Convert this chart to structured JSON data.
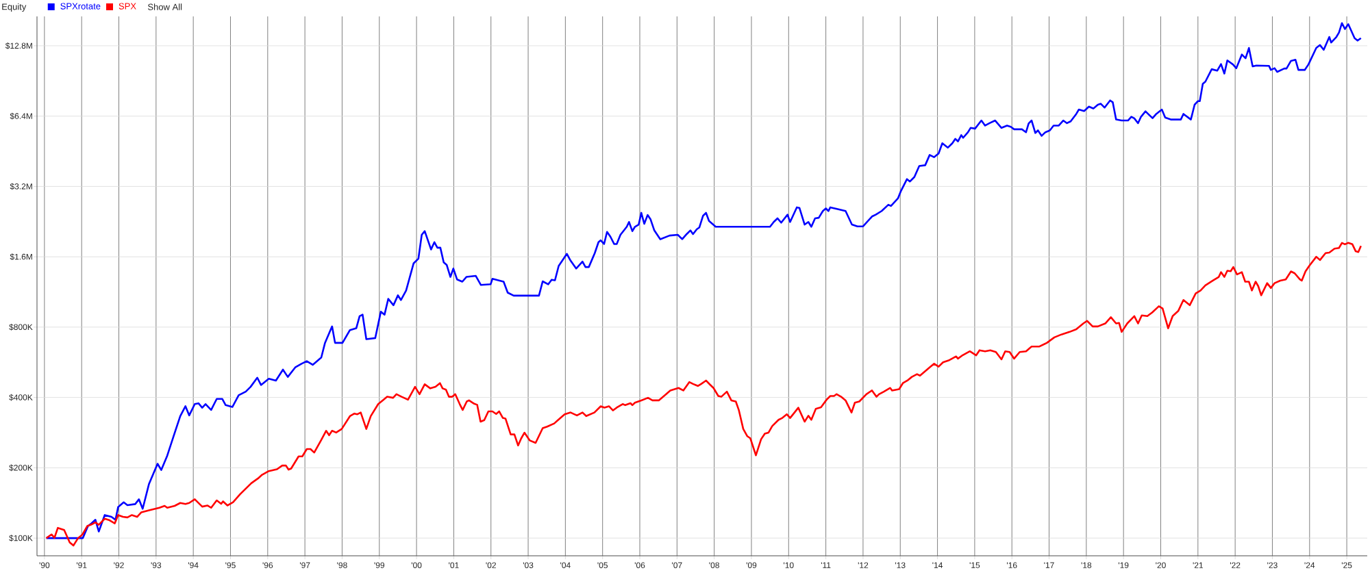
{
  "chart_data": {
    "type": "line",
    "title": "Equity",
    "annotations": [
      "Show All"
    ],
    "log": "y",
    "grid": true,
    "legend": "top left",
    "line_style": "solid",
    "xlim": [
      1989.8,
      2025.55
    ],
    "ylim": [
      84000,
      17100000
    ],
    "xticks": [
      {
        "value": 1990,
        "label": "'90"
      },
      {
        "value": 1991,
        "label": "'91"
      },
      {
        "value": 1992,
        "label": "'92"
      },
      {
        "value": 1993,
        "label": "'93"
      },
      {
        "value": 1994,
        "label": "'94"
      },
      {
        "value": 1995,
        "label": "'95"
      },
      {
        "value": 1996,
        "label": "'96"
      },
      {
        "value": 1997,
        "label": "'97"
      },
      {
        "value": 1998,
        "label": "'98"
      },
      {
        "value": 1999,
        "label": "'99"
      },
      {
        "value": 2000,
        "label": "'00"
      },
      {
        "value": 2001,
        "label": "'01"
      },
      {
        "value": 2002,
        "label": "'02"
      },
      {
        "value": 2003,
        "label": "'03"
      },
      {
        "value": 2004,
        "label": "'04"
      },
      {
        "value": 2005,
        "label": "'05"
      },
      {
        "value": 2006,
        "label": "'06"
      },
      {
        "value": 2007,
        "label": "'07"
      },
      {
        "value": 2008,
        "label": "'08"
      },
      {
        "value": 2009,
        "label": "'09"
      },
      {
        "value": 2010,
        "label": "'10"
      },
      {
        "value": 2011,
        "label": "'11"
      },
      {
        "value": 2012,
        "label": "'12"
      },
      {
        "value": 2013,
        "label": "'13"
      },
      {
        "value": 2014,
        "label": "'14"
      },
      {
        "value": 2015,
        "label": "'15"
      },
      {
        "value": 2016,
        "label": "'16"
      },
      {
        "value": 2017,
        "label": "'17"
      },
      {
        "value": 2018,
        "label": "'18"
      },
      {
        "value": 2019,
        "label": "'19"
      },
      {
        "value": 2020,
        "label": "'20"
      },
      {
        "value": 2021,
        "label": "'21"
      },
      {
        "value": 2022,
        "label": "'22"
      },
      {
        "value": 2023,
        "label": "'23"
      },
      {
        "value": 2024,
        "label": "'24"
      },
      {
        "value": 2025,
        "label": "'25"
      }
    ],
    "yticks": [
      {
        "value": 100000,
        "label": "$100K"
      },
      {
        "value": 200000,
        "label": "$200K"
      },
      {
        "value": 400000,
        "label": "$400K"
      },
      {
        "value": 800000,
        "label": "$800K"
      },
      {
        "value": 1600000,
        "label": "$1.6M"
      },
      {
        "value": 3200000,
        "label": "$3.2M"
      },
      {
        "value": 6400000,
        "label": "$6.4M"
      },
      {
        "value": 12800000,
        "label": "$12.8M"
      }
    ],
    "series": [
      {
        "name": "SPXrotate",
        "color": "#0000ff",
        "x": [
          1990.05,
          1991.03,
          1991.17,
          1991.26,
          1991.37,
          1991.46,
          1991.62,
          1991.8,
          1991.91,
          1991.98,
          1992.13,
          1992.23,
          1992.44,
          1992.54,
          1992.64,
          1992.81,
          1993.04,
          1993.14,
          1993.3,
          1993.47,
          1993.65,
          1993.79,
          1993.89,
          1994.04,
          1994.14,
          1994.24,
          1994.33,
          1994.48,
          1994.63,
          1994.78,
          1994.87,
          1995.05,
          1995.22,
          1995.41,
          1995.54,
          1995.72,
          1995.82,
          1996.03,
          1996.22,
          1996.41,
          1996.54,
          1996.74,
          1996.91,
          1997.05,
          1997.21,
          1997.44,
          1997.54,
          1997.73,
          1997.81,
          1998.01,
          1998.21,
          1998.38,
          1998.47,
          1998.55,
          1998.65,
          1998.89,
          1999.04,
          1999.14,
          1999.24,
          1999.38,
          1999.5,
          1999.58,
          1999.72,
          1999.92,
          2000.05,
          2000.14,
          2000.22,
          2000.39,
          2000.48,
          2000.56,
          2000.64,
          2000.73,
          2000.81,
          2000.91,
          2000.99,
          2001.09,
          2001.23,
          2001.34,
          2001.59,
          2001.73,
          2001.99,
          2002.04,
          2002.34,
          2002.45,
          2002.61,
          2003.29,
          2003.39,
          2003.54,
          2003.63,
          2003.72,
          2003.82,
          2003.92,
          2004.04,
          2004.14,
          2004.29,
          2004.46,
          2004.54,
          2004.63,
          2004.79,
          2004.89,
          2004.95,
          2005.04,
          2005.12,
          2005.21,
          2005.31,
          2005.38,
          2005.48,
          2005.65,
          2005.71,
          2005.8,
          2005.87,
          2005.97,
          2006.04,
          2006.12,
          2006.21,
          2006.29,
          2006.39,
          2006.55,
          2006.8,
          2007.02,
          2007.14,
          2007.26,
          2007.36,
          2007.43,
          2007.53,
          2007.6,
          2007.7,
          2007.78,
          2007.86,
          2008.04,
          2009.5,
          2009.6,
          2009.7,
          2009.8,
          2009.97,
          2010.04,
          2010.22,
          2010.29,
          2010.43,
          2010.53,
          2010.61,
          2010.71,
          2010.81,
          2010.92,
          2011.0,
          2011.07,
          2011.12,
          2011.32,
          2011.53,
          2011.7,
          2011.85,
          2012.0,
          2012.24,
          2012.34,
          2012.5,
          2012.68,
          2012.75,
          2012.94,
          2013.02,
          2013.18,
          2013.26,
          2013.38,
          2013.51,
          2013.67,
          2013.79,
          2013.91,
          2014.03,
          2014.13,
          2014.28,
          2014.4,
          2014.48,
          2014.55,
          2014.64,
          2014.69,
          2014.82,
          2014.89,
          2015.01,
          2015.18,
          2015.28,
          2015.4,
          2015.55,
          2015.72,
          2015.87,
          2015.97,
          2016.06,
          2016.27,
          2016.38,
          2016.45,
          2016.53,
          2016.63,
          2016.7,
          2016.8,
          2016.9,
          2017.02,
          2017.12,
          2017.26,
          2017.38,
          2017.48,
          2017.58,
          2017.73,
          2017.8,
          2017.94,
          2018.07,
          2018.19,
          2018.31,
          2018.39,
          2018.49,
          2018.64,
          2018.71,
          2018.8,
          2018.95,
          2019.12,
          2019.21,
          2019.29,
          2019.39,
          2019.47,
          2019.59,
          2019.66,
          2019.78,
          2019.88,
          2020.03,
          2020.12,
          2020.27,
          2020.54,
          2020.61,
          2020.81,
          2020.91,
          2021.0,
          2021.05,
          2021.13,
          2021.2,
          2021.37,
          2021.52,
          2021.62,
          2021.71,
          2021.79,
          2021.94,
          2022.03,
          2022.18,
          2022.28,
          2022.37,
          2022.47,
          2022.57,
          2022.91,
          2022.96,
          2023.06,
          2023.13,
          2023.32,
          2023.38,
          2023.5,
          2023.62,
          2023.7,
          2023.87,
          2023.97,
          2024.18,
          2024.28,
          2024.38,
          2024.53,
          2024.58,
          2024.72,
          2024.79,
          2024.87,
          2024.95,
          2025.04,
          2025.21,
          2025.29,
          2025.38
        ],
        "values": [
          100000,
          100000,
          112600,
          115500,
          119800,
          106700,
          125500,
          123300,
          119800,
          135900,
          142400,
          138400,
          139900,
          146600,
          133500,
          170600,
          208100,
          195700,
          225300,
          272900,
          332700,
          366800,
          335200,
          374800,
          377600,
          361600,
          374800,
          353800,
          394300,
          394300,
          370900,
          364200,
          408600,
          423600,
          444100,
          486000,
          452200,
          480900,
          472400,
          526300,
          489700,
          537800,
          557600,
          571900,
          551800,
          593000,
          685000,
          805600,
          685000,
          685000,
          777100,
          791200,
          891600,
          904600,
          710200,
          718100,
          931100,
          904600,
          1057000,
          993000,
          1095000,
          1045000,
          1148000,
          1499000,
          1571000,
          1987000,
          2060000,
          1720000,
          1848000,
          1750000,
          1750000,
          1515000,
          1477000,
          1312000,
          1425000,
          1279000,
          1252000,
          1312000,
          1326000,
          1212000,
          1220000,
          1288000,
          1252000,
          1124000,
          1091000,
          1091000,
          1256000,
          1220000,
          1276000,
          1269000,
          1462000,
          1543000,
          1647000,
          1540000,
          1425000,
          1526000,
          1446000,
          1446000,
          1659000,
          1848000,
          1882000,
          1815000,
          2045000,
          1951000,
          1815000,
          1815000,
          1987000,
          2151000,
          2255000,
          2060000,
          2151000,
          2198000,
          2467000,
          2214000,
          2415000,
          2312000,
          2075000,
          1903000,
          1973000,
          1987000,
          1903000,
          2001000,
          2075000,
          2001000,
          2098000,
          2136000,
          2397000,
          2467000,
          2278000,
          2151000,
          2151000,
          2255000,
          2337000,
          2240000,
          2423000,
          2255000,
          2604000,
          2590000,
          2198000,
          2255000,
          2151000,
          2337000,
          2350000,
          2512000,
          2577000,
          2512000,
          2604000,
          2558000,
          2512000,
          2198000,
          2159000,
          2159000,
          2380000,
          2423000,
          2512000,
          2672000,
          2640000,
          2850000,
          3064000,
          3440000,
          3360000,
          3514000,
          3917000,
          3945000,
          4365000,
          4270000,
          4429000,
          4900000,
          4691000,
          4900000,
          5116000,
          4990000,
          5304000,
          5170000,
          5460000,
          5700000,
          5660000,
          6130000,
          5830000,
          5970000,
          6130000,
          5700000,
          5830000,
          5760000,
          5620000,
          5620000,
          5460000,
          5950000,
          6130000,
          5420000,
          5560000,
          5270000,
          5460000,
          5560000,
          5830000,
          5830000,
          6130000,
          5970000,
          6080000,
          6540000,
          6830000,
          6730000,
          7030000,
          6900000,
          7160000,
          7230000,
          6960000,
          7470000,
          7340000,
          6190000,
          6130000,
          6130000,
          6360000,
          6260000,
          5970000,
          6360000,
          6710000,
          6540000,
          6270000,
          6540000,
          6830000,
          6310000,
          6190000,
          6190000,
          6540000,
          6190000,
          7160000,
          7420000,
          7420000,
          8790000,
          8990000,
          10160000,
          10020000,
          10690000,
          9730000,
          11080000,
          10650000,
          10260000,
          11740000,
          11320000,
          12530000,
          10450000,
          10530000,
          10500000,
          10090000,
          10260000,
          9900000,
          10230000,
          10230000,
          11030000,
          11160000,
          10090000,
          10090000,
          10650000,
          12530000,
          12890000,
          12300000,
          13960000,
          13220000,
          13960000,
          14580000,
          16010000,
          15100000,
          15840000,
          13800000,
          13470000,
          13800000
        ]
      },
      {
        "name": "SPX",
        "color": "#ff0000",
        "x": [
          1990.05,
          1990.19,
          1990.27,
          1990.36,
          1990.53,
          1990.68,
          1990.78,
          1990.9,
          1991.02,
          1991.15,
          1991.26,
          1991.37,
          1991.46,
          1991.62,
          1991.75,
          1991.89,
          1991.98,
          1992.11,
          1992.23,
          1992.35,
          1992.49,
          1992.6,
          1992.81,
          1993.09,
          1993.23,
          1993.3,
          1993.5,
          1993.65,
          1993.79,
          1993.89,
          1994.04,
          1994.24,
          1994.38,
          1994.48,
          1994.63,
          1994.75,
          1994.8,
          1994.92,
          1995.07,
          1995.26,
          1995.41,
          1995.56,
          1995.74,
          1995.85,
          1996.03,
          1996.25,
          1996.39,
          1996.49,
          1996.56,
          1996.63,
          1996.83,
          1996.93,
          1997.05,
          1997.15,
          1997.25,
          1997.44,
          1997.57,
          1997.65,
          1997.73,
          1997.84,
          1997.99,
          1998.21,
          1998.33,
          1998.41,
          1998.5,
          1998.65,
          1998.77,
          1998.97,
          1999.09,
          1999.21,
          1999.37,
          1999.46,
          1999.6,
          1999.77,
          1999.96,
          2000.08,
          2000.22,
          2000.37,
          2000.51,
          2000.63,
          2000.7,
          2000.79,
          2000.87,
          2000.96,
          2001.04,
          2001.16,
          2001.24,
          2001.35,
          2001.41,
          2001.55,
          2001.63,
          2001.72,
          2001.82,
          2001.93,
          2002.04,
          2002.14,
          2002.22,
          2002.32,
          2002.39,
          2002.53,
          2002.63,
          2002.73,
          2002.81,
          2002.9,
          2003.04,
          2003.2,
          2003.39,
          2003.51,
          2003.7,
          2003.8,
          2003.98,
          2004.14,
          2004.31,
          2004.46,
          2004.56,
          2004.78,
          2004.95,
          2005.05,
          2005.17,
          2005.28,
          2005.38,
          2005.54,
          2005.61,
          2005.75,
          2005.8,
          2005.87,
          2006.04,
          2006.22,
          2006.34,
          2006.51,
          2006.65,
          2006.82,
          2007.04,
          2007.17,
          2007.33,
          2007.43,
          2007.56,
          2007.65,
          2007.78,
          2007.88,
          2007.98,
          2008.11,
          2008.19,
          2008.34,
          2008.46,
          2008.58,
          2008.66,
          2008.78,
          2008.89,
          2008.97,
          2009.12,
          2009.26,
          2009.36,
          2009.46,
          2009.56,
          2009.73,
          2009.83,
          2009.95,
          2010.04,
          2010.26,
          2010.43,
          2010.53,
          2010.61,
          2010.73,
          2010.87,
          2011.02,
          2011.12,
          2011.22,
          2011.29,
          2011.41,
          2011.53,
          2011.69,
          2011.78,
          2011.9,
          2012.09,
          2012.24,
          2012.36,
          2012.43,
          2012.56,
          2012.73,
          2012.78,
          2012.97,
          2013.07,
          2013.19,
          2013.31,
          2013.45,
          2013.53,
          2013.81,
          2013.91,
          2014.03,
          2014.15,
          2014.3,
          2014.5,
          2014.55,
          2014.68,
          2014.87,
          2015.04,
          2015.13,
          2015.28,
          2015.42,
          2015.57,
          2015.72,
          2015.82,
          2015.94,
          2016.06,
          2016.21,
          2016.38,
          2016.53,
          2016.74,
          2016.94,
          2017.14,
          2017.33,
          2017.55,
          2017.73,
          2017.92,
          2018.02,
          2018.17,
          2018.31,
          2018.51,
          2018.66,
          2018.8,
          2018.88,
          2018.95,
          2019.1,
          2019.29,
          2019.39,
          2019.49,
          2019.64,
          2019.77,
          2019.95,
          2020.05,
          2020.2,
          2020.32,
          2020.47,
          2020.61,
          2020.78,
          2020.94,
          2021.07,
          2021.2,
          2021.4,
          2021.56,
          2021.62,
          2021.71,
          2021.79,
          2021.88,
          2021.95,
          2022.05,
          2022.18,
          2022.27,
          2022.37,
          2022.45,
          2022.55,
          2022.62,
          2022.7,
          2022.86,
          2022.96,
          2023.06,
          2023.21,
          2023.36,
          2023.5,
          2023.6,
          2023.74,
          2023.79,
          2023.89,
          2023.99,
          2024.18,
          2024.28,
          2024.43,
          2024.53,
          2024.67,
          2024.79,
          2024.87,
          2024.95,
          2025.04,
          2025.15,
          2025.24,
          2025.31,
          2025.38
        ],
        "values": [
          100000,
          103700,
          100400,
          110600,
          108300,
          95800,
          93000,
          99800,
          103600,
          112600,
          114300,
          116800,
          114000,
          121100,
          119200,
          115600,
          125500,
          123300,
          122600,
          125500,
          123300,
          128800,
          131600,
          134900,
          137400,
          134900,
          137400,
          141400,
          140000,
          141400,
          146600,
          136400,
          137900,
          134900,
          145000,
          140300,
          143600,
          137900,
          142400,
          154200,
          162800,
          171800,
          180100,
          186700,
          193600,
          197100,
          204400,
          204400,
          196400,
          198500,
          223700,
          223700,
          240500,
          240500,
          232400,
          263200,
          288000,
          275600,
          288000,
          283100,
          293200,
          332700,
          341300,
          338900,
          344900,
          293200,
          332700,
          374800,
          388600,
          402800,
          398600,
          413200,
          402800,
          391400,
          444100,
          413200,
          455600,
          437500,
          444100,
          460500,
          437500,
          432000,
          402800,
          402800,
          413200,
          374800,
          353800,
          384400,
          388600,
          376000,
          372000,
          315200,
          320000,
          348700,
          348700,
          340000,
          348700,
          326800,
          325000,
          277800,
          277800,
          249300,
          266600,
          282800,
          262000,
          255600,
          295400,
          300000,
          309500,
          320000,
          338900,
          344900,
          335000,
          344900,
          333000,
          344900,
          366800,
          362000,
          366800,
          352000,
          362000,
          374800,
          370900,
          378000,
          370900,
          380000,
          388600,
          398600,
          388600,
          388600,
          405800,
          428500,
          439300,
          428500,
          465500,
          457000,
          448000,
          457000,
          472400,
          455000,
          439300,
          405800,
          402800,
          423600,
          388600,
          384400,
          353800,
          293200,
          272900,
          267500,
          226100,
          265000,
          280000,
          283000,
          301800,
          320900,
          326800,
          338900,
          326800,
          361600,
          315200,
          334000,
          320900,
          357800,
          363000,
          391400,
          405800,
          405800,
          413200,
          402800,
          388600,
          344900,
          380000,
          384400,
          413200,
          428500,
          402800,
          413200,
          423600,
          439300,
          428500,
          434000,
          460500,
          472400,
          489700,
          503000,
          496000,
          541800,
          557600,
          541800,
          565700,
          576000,
          599200,
          586400,
          607000,
          630300,
          606000,
          636900,
          630300,
          636900,
          626000,
          582400,
          630300,
          626000,
          586400,
          626000,
          630300,
          660900,
          660900,
          685000,
          723200,
          744000,
          763300,
          783000,
          829400,
          850900,
          805600,
          805600,
          829400,
          882200,
          829400,
          834000,
          763300,
          829400,
          891600,
          829400,
          898200,
          891600,
          924400,
          982800,
          962000,
          791200,
          891600,
          937700,
          1045000,
          993000,
          1115000,
          1148000,
          1207000,
          1265000,
          1312000,
          1375000,
          1312000,
          1395000,
          1388000,
          1446000,
          1345000,
          1375000,
          1252000,
          1252000,
          1148000,
          1252000,
          1198000,
          1095000,
          1234000,
          1177000,
          1234000,
          1265000,
          1280000,
          1385000,
          1360000,
          1280000,
          1265000,
          1385000,
          1462000,
          1600000,
          1550000,
          1659000,
          1667000,
          1733000,
          1745000,
          1835000,
          1810000,
          1835000,
          1810000,
          1689000,
          1677000,
          1782000
        ]
      }
    ]
  }
}
